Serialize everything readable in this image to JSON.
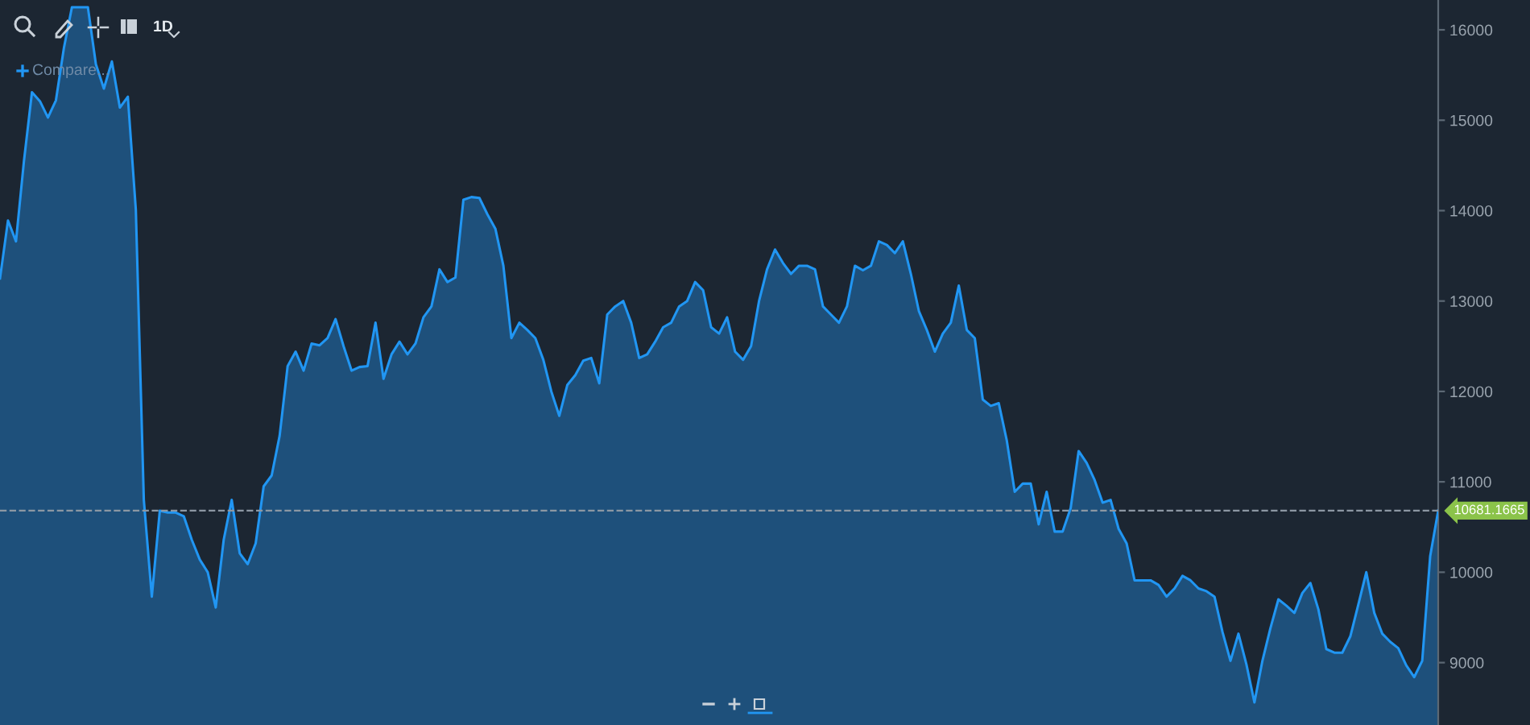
{
  "chart_data": {
    "type": "area",
    "categories": [
      null,
      null,
      null,
      null,
      null,
      null,
      null,
      null,
      null,
      null,
      null,
      null,
      null,
      null,
      null,
      null,
      null,
      null,
      null,
      null,
      null,
      null,
      null,
      null,
      null,
      null,
      null,
      null,
      null,
      null,
      null,
      null,
      null,
      null,
      null,
      null,
      null,
      null,
      null,
      null,
      null,
      null,
      null,
      null,
      null,
      null,
      null,
      null,
      null,
      null,
      null,
      null,
      null,
      null,
      null,
      null,
      null,
      null,
      null,
      null,
      null,
      null,
      null,
      null,
      null,
      null,
      null,
      null,
      null,
      null,
      null,
      null,
      null,
      null,
      null,
      null,
      null,
      null,
      null,
      null,
      null,
      null,
      null,
      null,
      null,
      null,
      null,
      null,
      null,
      null,
      null,
      null,
      null,
      null,
      null,
      null,
      null,
      null,
      null,
      null,
      null,
      null,
      null,
      null,
      null,
      null,
      null,
      null,
      null,
      null,
      null,
      null,
      null,
      null,
      null,
      null,
      null,
      null,
      null,
      null,
      null,
      null,
      null,
      null,
      null,
      null,
      null,
      null,
      null,
      null,
      null,
      null,
      null,
      null,
      null,
      null,
      null,
      null,
      null,
      null,
      null,
      null,
      null,
      null,
      null,
      null,
      null,
      null,
      null,
      null,
      null,
      null,
      null,
      null,
      null,
      null,
      null,
      null,
      null,
      null,
      null,
      null,
      null,
      null,
      null,
      null,
      null,
      null,
      null,
      null,
      null,
      null,
      null,
      null,
      null,
      null,
      null,
      null,
      null,
      null,
      null
    ],
    "series": [
      {
        "color": "#2196f3",
        "values": [
          13250,
          13890,
          13660,
          14550,
          15310,
          15210,
          15030,
          15220,
          15800,
          16250,
          16250,
          16250,
          15620,
          15350,
          15650,
          15140,
          15260,
          14010,
          10800,
          9730,
          10680,
          10660,
          10660,
          10620,
          10360,
          10140,
          10000,
          9610,
          10360,
          10800,
          10210,
          10090,
          10320,
          10950,
          11070,
          11510,
          12280,
          12440,
          12230,
          12530,
          12510,
          12590,
          12800,
          12500,
          12230,
          12270,
          12280,
          12760,
          12140,
          12410,
          12550,
          12410,
          12530,
          12820,
          12940,
          13350,
          13210,
          13260,
          14120,
          14150,
          14140,
          13960,
          13800,
          13390,
          12590,
          12760,
          12680,
          12590,
          12350,
          12000,
          11730,
          12070,
          12180,
          12340,
          12370,
          12090,
          12850,
          12940,
          13000,
          12760,
          12370,
          12410,
          12550,
          12710,
          12760,
          12940,
          13000,
          13210,
          13120,
          12710,
          12640,
          12820,
          12440,
          12350,
          12500,
          13000,
          13350,
          13570,
          13420,
          13300,
          13390,
          13390,
          13350,
          12940,
          12850,
          12760,
          12940,
          13390,
          13340,
          13390,
          13660,
          13620,
          13530,
          13660,
          13300,
          12890,
          12680,
          12440,
          12640,
          12760,
          13170,
          12680,
          12590,
          11910,
          11840,
          11870,
          11460,
          10890,
          10980,
          10980,
          10530,
          10890,
          10450,
          10450,
          10710,
          11340,
          11210,
          11020,
          10770,
          10800,
          10480,
          10320,
          9910,
          9910,
          9910,
          9860,
          9730,
          9820,
          9960,
          9910,
          9820,
          9790,
          9730,
          9340,
          9020,
          9320,
          8980,
          8560,
          9020,
          9380,
          9700,
          9630,
          9550,
          9770,
          9880,
          9590,
          9150,
          9110,
          9110,
          9290,
          9640,
          10000,
          9550,
          9320,
          9230,
          9160,
          8970,
          8840,
          9020,
          10180,
          10680
        ]
      }
    ],
    "ylim": [
      8310,
      16330
    ],
    "yticks": [
      9000,
      10000,
      11000,
      12000,
      13000,
      14000,
      15000,
      16000
    ],
    "tick_labels": "y",
    "ref_lines": [
      {
        "axis": "y",
        "value": 10681.1665,
        "label": "10681.1665",
        "color": "#8c97a3",
        "line_style": "dashed"
      }
    ],
    "annotations": [
      "1D",
      "Compare..."
    ]
  }
}
